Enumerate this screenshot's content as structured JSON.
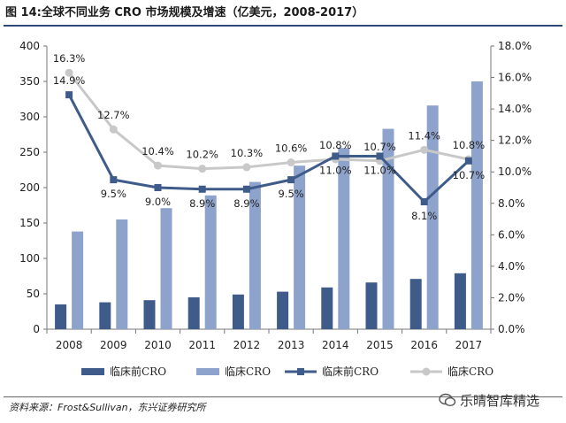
{
  "title": "图 14:全球不同业务 CRO 市场规模及增速（亿美元，2008-2017）",
  "source": "资料来源：Frost&Sullivan，东兴证券研究所",
  "watermark": "乐晴智库精选",
  "chart_data": {
    "type": "bar",
    "categories": [
      "2008",
      "2009",
      "2010",
      "2011",
      "2012",
      "2013",
      "2014",
      "2015",
      "2016",
      "2017"
    ],
    "series": [
      {
        "name": "临床前CRO",
        "kind": "bar",
        "axis": "left",
        "color": "#3e5b8a",
        "values": [
          35,
          38,
          41,
          45,
          49,
          53,
          59,
          66,
          71,
          79
        ]
      },
      {
        "name": "临床CRO",
        "kind": "bar",
        "axis": "left",
        "color": "#8ea3cb",
        "values": [
          138,
          155,
          171,
          189,
          208,
          231,
          256,
          283,
          316,
          350
        ]
      },
      {
        "name": "临床前CRO",
        "kind": "line",
        "axis": "right",
        "color": "#3e5b8a",
        "values": [
          14.9,
          9.5,
          9.0,
          8.9,
          8.9,
          9.5,
          11.0,
          11.0,
          8.1,
          10.7
        ],
        "labels": [
          "14.9%",
          "9.5%",
          "9.0%",
          "8.9%",
          "8.9%",
          "9.5%",
          "11.0%",
          "11.0%",
          "8.1%",
          "10.7%"
        ]
      },
      {
        "name": "临床CRO",
        "kind": "line",
        "axis": "right",
        "color": "#c8c8c8",
        "values": [
          16.3,
          12.7,
          10.4,
          10.2,
          10.3,
          10.6,
          10.8,
          10.7,
          11.4,
          10.8
        ],
        "labels": [
          "16.3%",
          "12.7%",
          "10.4%",
          "10.2%",
          "10.3%",
          "10.6%",
          "10.8%",
          "10.7%",
          "11.4%",
          "10.8%"
        ]
      }
    ],
    "ylim": [
      0,
      400
    ],
    "yticks": [
      "0",
      "50",
      "100",
      "150",
      "200",
      "250",
      "300",
      "350",
      "400"
    ],
    "y2lim": [
      0,
      18
    ],
    "y2ticks": [
      "0.0%",
      "2.0%",
      "4.0%",
      "6.0%",
      "8.0%",
      "10.0%",
      "12.0%",
      "14.0%",
      "16.0%",
      "18.0%"
    ],
    "grid": false,
    "legend_position": "bottom"
  }
}
